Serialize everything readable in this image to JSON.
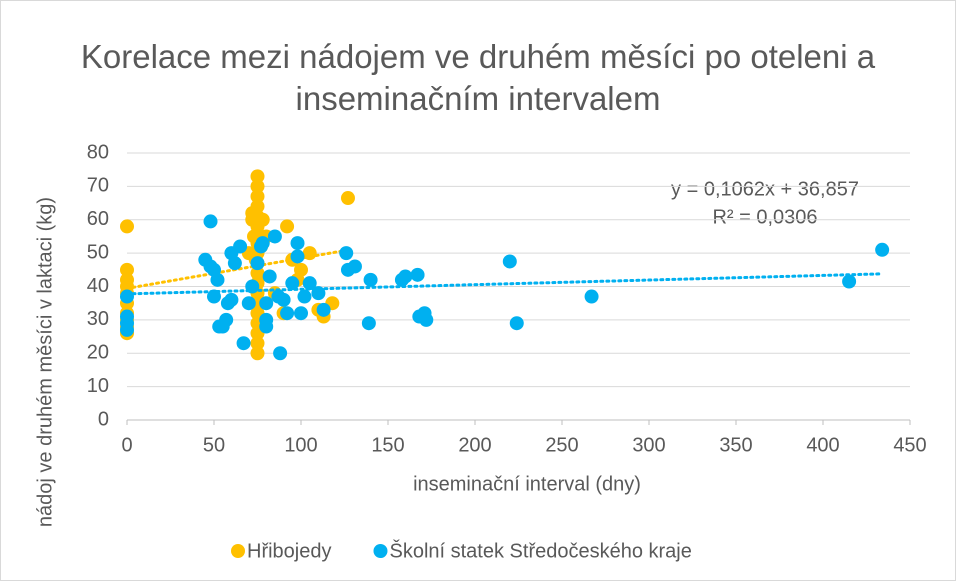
{
  "chart_data": {
    "type": "scatter",
    "title": "Korelace mezi nádojem ve druhém měsíci po oteleni a inseminačním intervalem",
    "xlabel": "inseminační interval (dny)",
    "ylabel": "nádoj ve druhém měsíci v laktaci (kg)",
    "annotations": [
      "y = 0,1062x + 36,857",
      "R² = 0,0306"
    ],
    "xlim": [
      0,
      450
    ],
    "xticks": [
      0,
      50,
      100,
      150,
      200,
      250,
      300,
      350,
      400,
      450
    ],
    "ylim": [
      0,
      80
    ],
    "yticks": [
      0,
      10,
      20,
      30,
      40,
      50,
      60,
      70,
      80
    ],
    "grid": true,
    "legend": "bottom",
    "series": [
      {
        "name": "Hřibojedy",
        "color": "#FFC000",
        "x": [
          0,
          0,
          0,
          0,
          0,
          0,
          0,
          0,
          0,
          0,
          75,
          75,
          75,
          75,
          75,
          75,
          75,
          75,
          75,
          75,
          75,
          75,
          75,
          75,
          75,
          75,
          75,
          75,
          75,
          72,
          78,
          73,
          77,
          74,
          76,
          92,
          95,
          100,
          105,
          110,
          113,
          118,
          127,
          98,
          90,
          85,
          80,
          72,
          70
        ],
        "values": [
          58,
          45,
          42,
          40,
          38,
          35,
          32,
          30,
          28,
          26,
          73,
          70,
          67,
          64,
          61,
          58,
          56,
          53,
          50,
          47,
          44,
          41,
          38,
          35,
          32,
          29,
          26,
          23,
          20,
          62,
          60,
          55,
          52,
          48,
          43,
          58,
          48,
          45,
          50,
          33,
          31,
          35,
          66.5,
          42,
          32,
          38,
          55,
          60,
          50
        ]
      },
      {
        "name": "Školní statek Středočeského kraje",
        "color": "#00B0F0",
        "x": [
          0,
          0,
          0,
          0,
          48,
          45,
          48,
          50,
          52,
          50,
          53,
          55,
          57,
          58,
          60,
          62,
          60,
          65,
          67,
          70,
          72,
          75,
          77,
          78,
          80,
          80,
          80,
          82,
          85,
          87,
          88,
          90,
          92,
          95,
          98,
          98,
          100,
          102,
          105,
          110,
          113,
          126,
          127,
          131,
          140,
          139,
          158,
          160,
          167,
          168,
          171,
          172,
          220,
          224,
          267,
          415,
          434
        ],
        "values": [
          37,
          31,
          29,
          27,
          59.5,
          48,
          46,
          45,
          42,
          37,
          28,
          28,
          30,
          35,
          36,
          47,
          50,
          52,
          23,
          35,
          40,
          47,
          52,
          53,
          35,
          28,
          30,
          43,
          55,
          37,
          20,
          36,
          32,
          41,
          53,
          49,
          32,
          37,
          41,
          38,
          33,
          50,
          45,
          46,
          42,
          29,
          42,
          43,
          43.5,
          31,
          32,
          30,
          47.5,
          29,
          37,
          41.5,
          51
        ]
      }
    ]
  }
}
